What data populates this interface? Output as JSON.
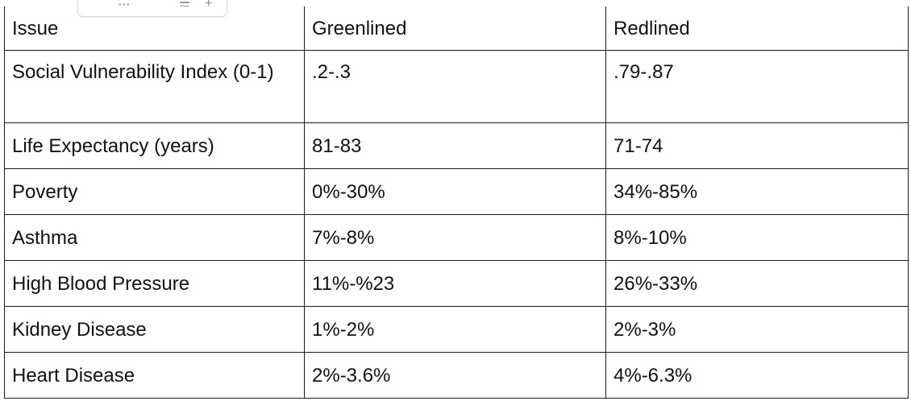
{
  "table": {
    "headers": [
      "Issue",
      "Greenlined",
      "Redlined"
    ],
    "rows": [
      [
        "Social Vulnerability Index (0-1)",
        ".2-.3",
        ".79-.87"
      ],
      [
        "Life Expectancy (years)",
        "81-83",
        "71-74"
      ],
      [
        "Poverty",
        "0%-30%",
        "34%-85%"
      ],
      [
        "Asthma",
        "7%-8%",
        "8%-10%"
      ],
      [
        "High Blood Pressure",
        "11%-%23",
        "26%-33%"
      ],
      [
        "Kidney Disease",
        "1%-2%",
        "2%-3%"
      ],
      [
        "Heart Disease",
        "2%-3.6%",
        "4%-6.3%"
      ]
    ]
  },
  "toolbar": {
    "more_icon": "more-horizontal-icon",
    "minus_icon": "minus-icon",
    "plus_icon": "plus-icon",
    "dots_glyph": "•••",
    "plus_glyph": "+"
  }
}
